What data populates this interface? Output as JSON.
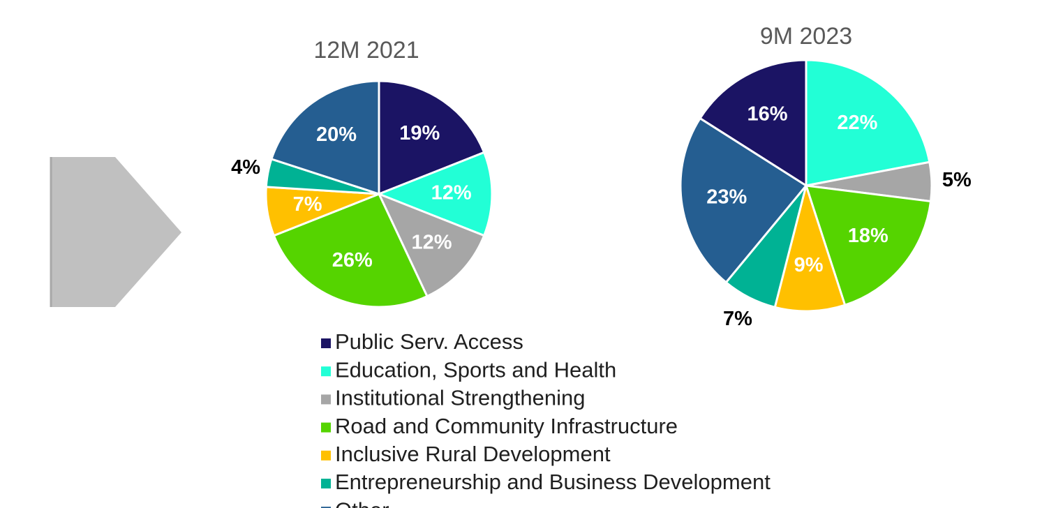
{
  "chart_data": [
    {
      "type": "pie",
      "title": "12M 2021",
      "categories": [
        "Public Serv. Access",
        "Education, Sports and Health",
        "Institutional Strengthening",
        "Road and Community Infrastructure",
        "Inclusive Rural Development",
        "Entrepreneurship and Business Development",
        "Other"
      ],
      "values": [
        19,
        12,
        12,
        26,
        7,
        4,
        20
      ],
      "value_labels": [
        "19%",
        "12%",
        "12%",
        "26%",
        "7%",
        "4%",
        "20%"
      ],
      "colors": [
        "#1b1464",
        "#22ffd6",
        "#a6a6a6",
        "#55d400",
        "#ffc000",
        "#00b294",
        "#255e91"
      ],
      "legend": "bottom"
    },
    {
      "type": "pie",
      "title": "9M 2023",
      "categories": [
        "Public Serv. Access",
        "Education, Sports and Health",
        "Institutional Strengthening",
        "Road and Community Infrastructure",
        "Inclusive Rural Development",
        "Entrepreneurship and Business Development",
        "Other"
      ],
      "values": [
        16,
        22,
        5,
        18,
        9,
        7,
        23
      ],
      "value_labels": [
        "16%",
        "22%",
        "5%",
        "18%",
        "9%",
        "7%",
        "23%"
      ],
      "colors": [
        "#1b1464",
        "#22ffd6",
        "#a6a6a6",
        "#55d400",
        "#ffc000",
        "#00b294",
        "#255e91"
      ]
    }
  ]
}
